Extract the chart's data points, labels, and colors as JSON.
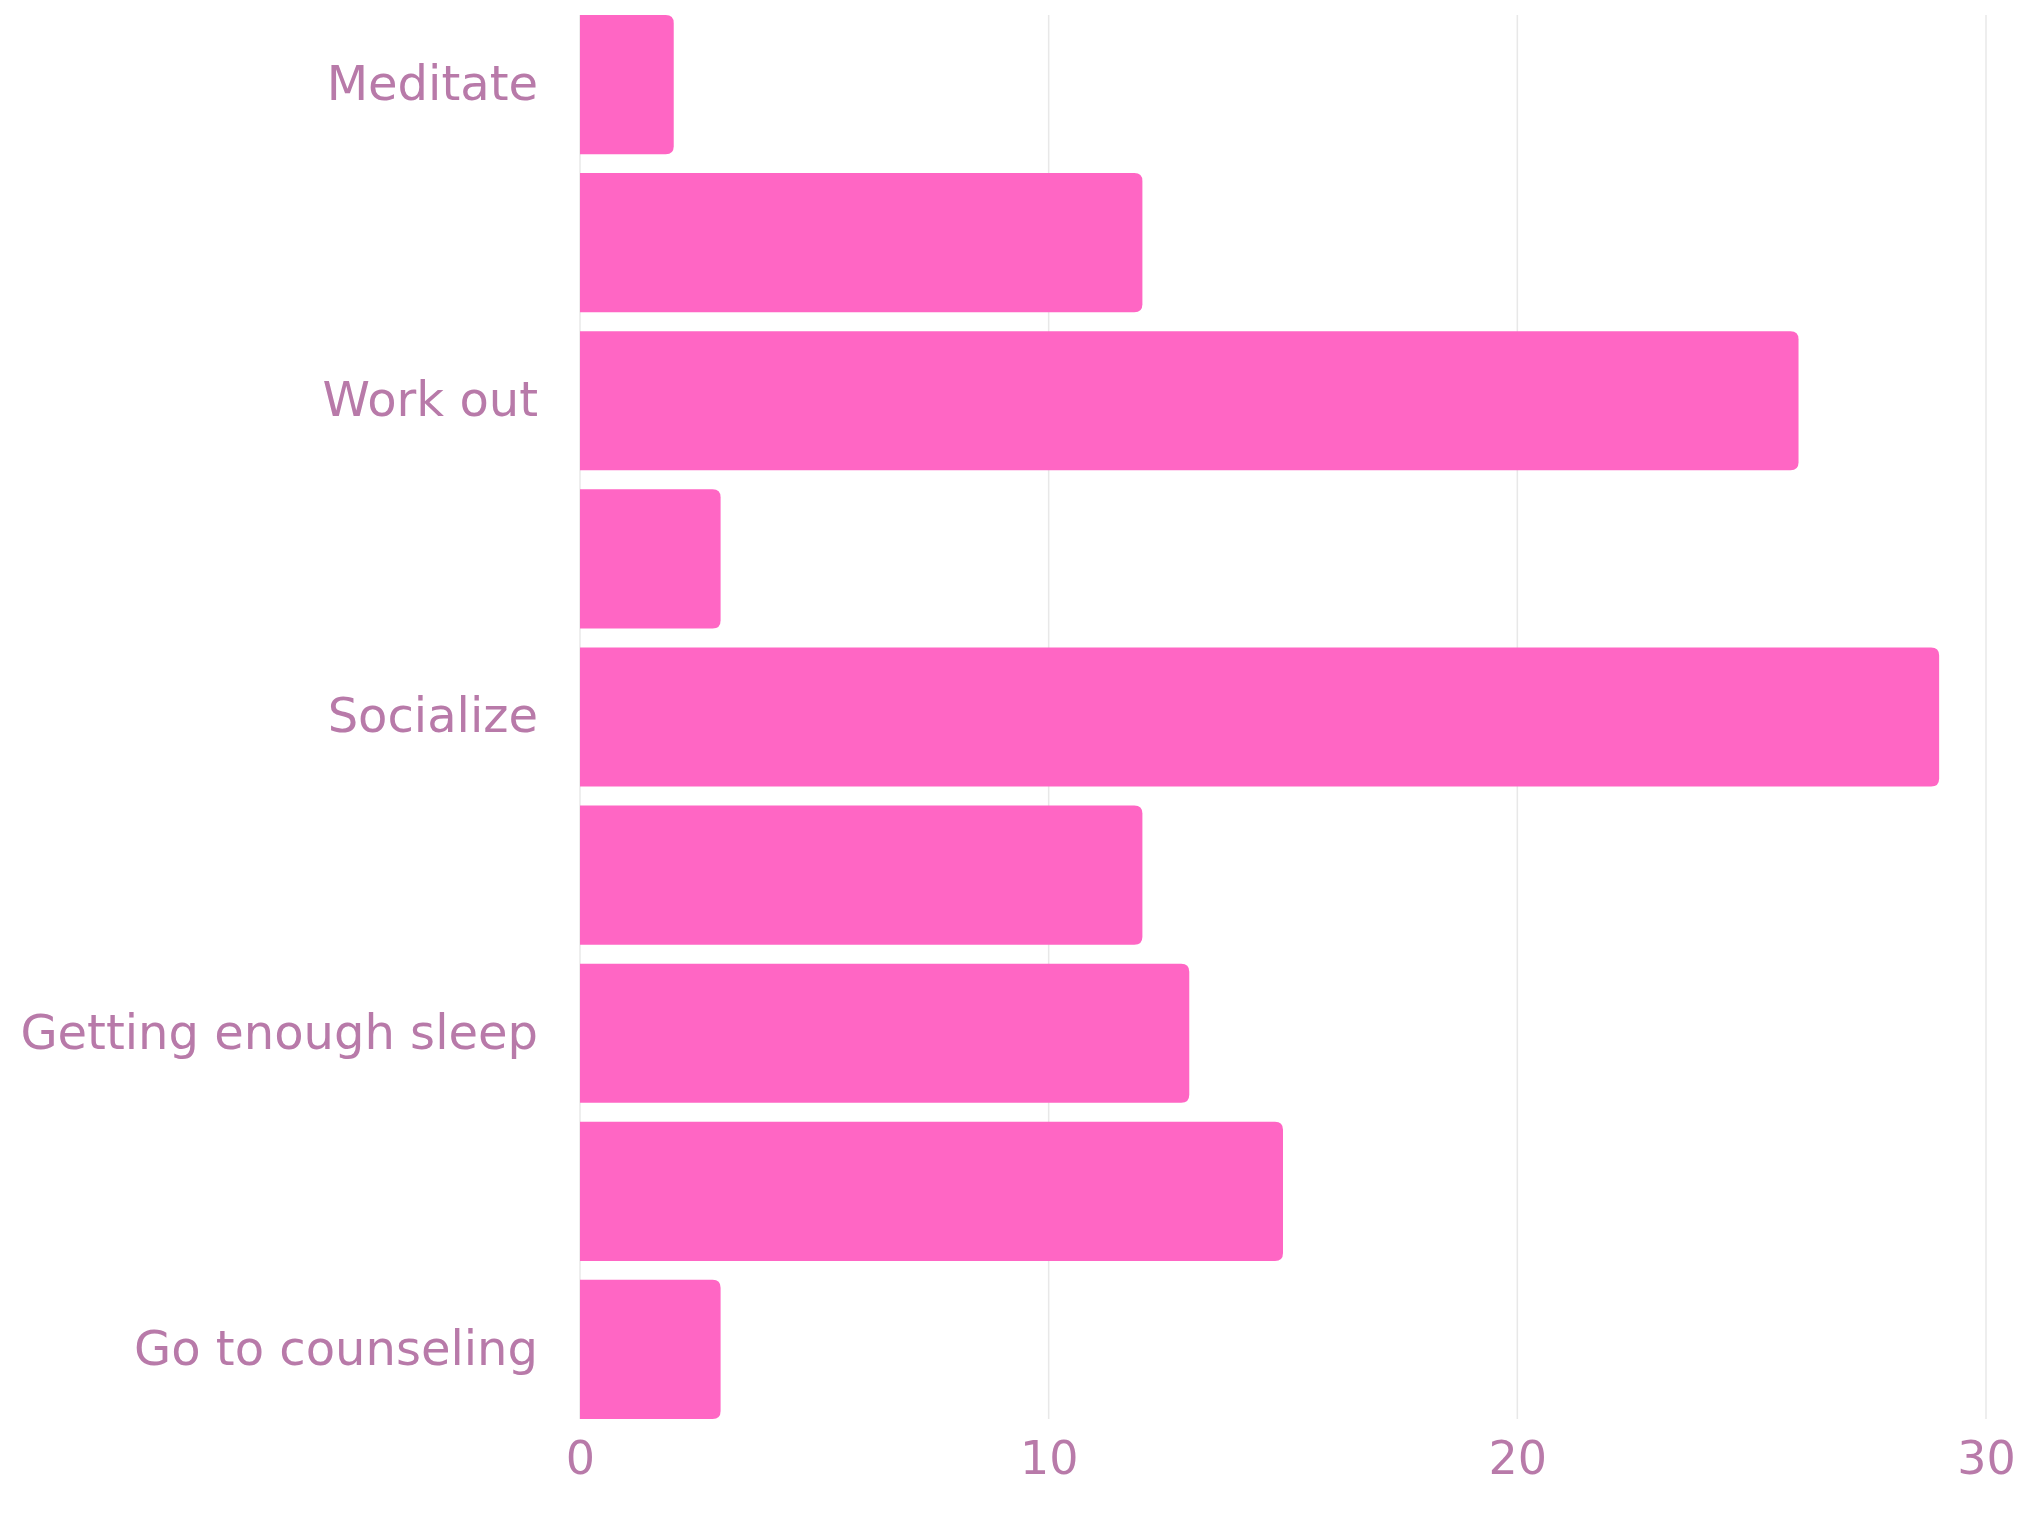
{
  "chart_data": {
    "type": "bar",
    "orientation": "horizontal",
    "categories": [
      "Meditate",
      null,
      "Work out",
      null,
      "Socialize",
      null,
      "Getting enough sleep",
      null,
      "Go to counseling"
    ],
    "values": [
      2,
      12,
      26,
      3,
      29,
      12,
      13,
      15,
      3
    ],
    "color": "#ff66c4",
    "xlim": [
      0,
      30
    ],
    "xticks": [
      0,
      10,
      20,
      30
    ],
    "grid": "x"
  }
}
